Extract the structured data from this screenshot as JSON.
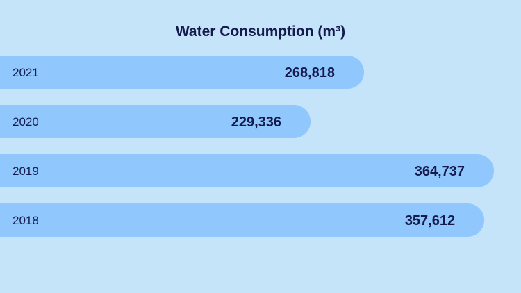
{
  "chart_data": {
    "type": "bar",
    "orientation": "horizontal",
    "title": "Water Consumption (m³)",
    "categories": [
      "2021",
      "2020",
      "2019",
      "2018"
    ],
    "values": [
      268818,
      229336,
      364737,
      357612
    ],
    "value_labels": [
      "268,818",
      "229,336",
      "364,737",
      "357,612"
    ],
    "xlabel": "",
    "ylabel": "",
    "grid": false,
    "legend": "none",
    "colors": {
      "background": "#c5e4f9",
      "bar": "#90c8fd",
      "text": "#141a4d"
    }
  }
}
